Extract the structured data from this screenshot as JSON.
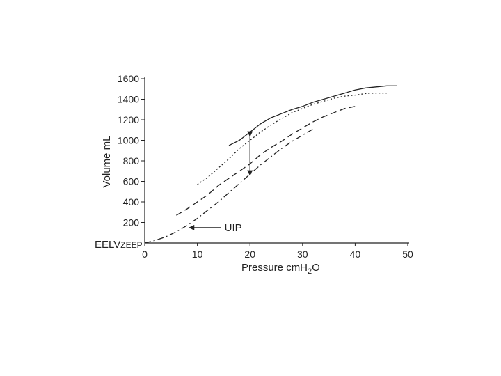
{
  "chart_data": {
    "type": "line",
    "title": "",
    "xlabel": "Pressure  cmH",
    "xlabel_sub": "2",
    "xlabel_tail": "O",
    "ylabel": "Volume  mL",
    "xlim": [
      0,
      50
    ],
    "ylim": [
      0,
      1600
    ],
    "x_ticks": [
      "0",
      "10",
      "20",
      "30",
      "40",
      "50"
    ],
    "y_ticks": [
      "200",
      "400",
      "600",
      "800",
      "1000",
      "1200",
      "1400",
      "1600"
    ],
    "y_origin_label": "EELV",
    "y_origin_label_sub": "ZEEP",
    "grid": false,
    "legend": "none",
    "series": [
      {
        "style": "dash-dot",
        "x": [
          0,
          2,
          4,
          6,
          8,
          10,
          12,
          14,
          16,
          18,
          20,
          22,
          24,
          26,
          28,
          30,
          32
        ],
        "y": [
          0,
          25,
          60,
          110,
          170,
          240,
          320,
          400,
          490,
          580,
          670,
          760,
          840,
          920,
          990,
          1050,
          1110
        ]
      },
      {
        "style": "dashed",
        "x": [
          6,
          8,
          10,
          12,
          14,
          16,
          18,
          20,
          22,
          24,
          26,
          28,
          30,
          32,
          34,
          36,
          38,
          40
        ],
        "y": [
          270,
          330,
          400,
          470,
          560,
          630,
          700,
          770,
          860,
          930,
          990,
          1060,
          1120,
          1180,
          1230,
          1270,
          1310,
          1330
        ]
      },
      {
        "style": "dotted",
        "x": [
          10,
          12,
          14,
          16,
          18,
          20,
          22,
          24,
          26,
          28,
          30,
          32,
          34,
          36,
          38,
          40,
          42,
          44,
          46
        ],
        "y": [
          570,
          640,
          730,
          820,
          920,
          1000,
          1080,
          1150,
          1210,
          1270,
          1310,
          1350,
          1380,
          1410,
          1430,
          1440,
          1455,
          1460,
          1460
        ]
      },
      {
        "style": "solid",
        "x": [
          16,
          18,
          20,
          22,
          24,
          26,
          28,
          30,
          32,
          34,
          36,
          38,
          40,
          42,
          44,
          46,
          48
        ],
        "y": [
          950,
          1000,
          1080,
          1160,
          1220,
          1260,
          1300,
          1330,
          1370,
          1400,
          1430,
          1460,
          1490,
          1510,
          1520,
          1530,
          1530
        ]
      }
    ],
    "annotations": [
      {
        "text": "UIP",
        "arrow_from": [
          14.5,
          150
        ],
        "arrow_to": [
          8.5,
          150
        ]
      },
      {
        "text": "",
        "double_arrow_x": 20,
        "y_top": 1040,
        "y_bottom": 660
      }
    ]
  }
}
